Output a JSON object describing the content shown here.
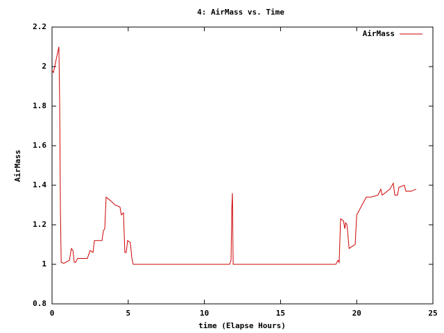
{
  "chart_data": {
    "type": "line",
    "title": "4: AirMass vs. Time",
    "x_label": "time (Elapse Hours)",
    "y_label": "AirMass",
    "xlim": [
      0,
      25
    ],
    "ylim": [
      0.8,
      2.2
    ],
    "xticks": [
      0,
      5,
      10,
      15,
      20,
      25
    ],
    "yticks": [
      0.8,
      1,
      1.2,
      1.4,
      1.6,
      1.8,
      2,
      2.2
    ],
    "grid": false,
    "legend": "top-right",
    "series": [
      {
        "name": "AirMass",
        "color": "#cc0000",
        "x": [
          0,
          0.09,
          0.45,
          0.5,
          0.55,
          0.6,
          0.77,
          1.14,
          1.27,
          1.37,
          1.46,
          1.55,
          1.68,
          2.32,
          2.5,
          2.69,
          2.78,
          2.96,
          3.28,
          3.37,
          3.46,
          3.55,
          3.87,
          4.14,
          4.46,
          4.55,
          4.69,
          4.78,
          4.87,
          4.96,
          5.14,
          5.24,
          5.33,
          11.66,
          11.75,
          11.8,
          11.84,
          11.89,
          18.63,
          18.77,
          18.85,
          18.94,
          19.13,
          19.22,
          19.27,
          19.36,
          19.5,
          19.68,
          19.9,
          20.0,
          20.63,
          20.95,
          21.4,
          21.58,
          21.67,
          22.18,
          22.4,
          22.5,
          22.68,
          22.77,
          23.13,
          23.22,
          23.58,
          23.9
        ],
        "values": [
          1.98,
          1.97,
          2.1,
          1.83,
          1.28,
          1.01,
          1.005,
          1.02,
          1.08,
          1.07,
          1.01,
          1.01,
          1.03,
          1.03,
          1.07,
          1.06,
          1.12,
          1.12,
          1.12,
          1.17,
          1.18,
          1.34,
          1.32,
          1.3,
          1.29,
          1.25,
          1.26,
          1.06,
          1.06,
          1.12,
          1.11,
          1.03,
          1.0,
          1.0,
          1.02,
          1.28,
          1.36,
          1.0,
          1.0,
          1.02,
          1.01,
          1.23,
          1.22,
          1.18,
          1.21,
          1.2,
          1.08,
          1.09,
          1.1,
          1.25,
          1.34,
          1.34,
          1.35,
          1.38,
          1.35,
          1.38,
          1.41,
          1.35,
          1.35,
          1.39,
          1.4,
          1.37,
          1.37,
          1.38
        ]
      }
    ]
  }
}
